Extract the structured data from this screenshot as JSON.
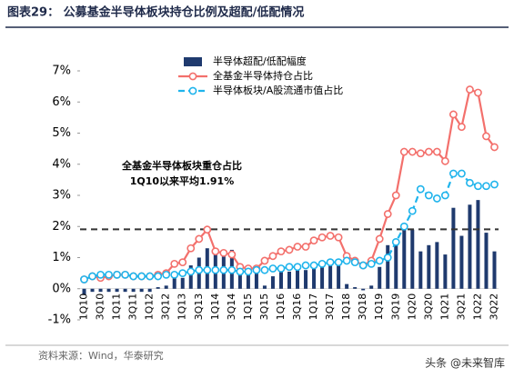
{
  "chart_data": {
    "type": "bar",
    "title": "图表29：  公募基金半导体板块持仓比例及超配/低配情况",
    "source": "资料来源：Wind，华泰研究",
    "watermark": "头条 @未来智库",
    "annotation": [
      "全基金半导体板块重仓占比",
      "1Q10以来平均1.91%"
    ],
    "average": 1.91,
    "categories": [
      "1Q10",
      null,
      "3Q10",
      null,
      "1Q11",
      null,
      "3Q11",
      null,
      "1Q12",
      null,
      "3Q12",
      null,
      "1Q13",
      null,
      "3Q13",
      null,
      "1Q14",
      null,
      "3Q14",
      null,
      "1Q15",
      null,
      "3Q15",
      null,
      "1Q16",
      null,
      "3Q16",
      null,
      "1Q17",
      null,
      "3Q17",
      null,
      "1Q18",
      null,
      "3Q18",
      null,
      "1Q19",
      null,
      "3Q19",
      null,
      "1Q20",
      null,
      "3Q20",
      null,
      "1Q21",
      null,
      "3Q21",
      null,
      "1Q22",
      null,
      "3Q22"
    ],
    "series": [
      {
        "name": "半导体超配/低配幅度",
        "type": "bar",
        "color": "#1f3a6e",
        "values": [
          -0.2,
          -0.1,
          -0.1,
          -0.1,
          -0.1,
          -0.1,
          -0.1,
          -0.1,
          -0.1,
          0.05,
          0.1,
          0.35,
          0.35,
          0.75,
          1.0,
          1.3,
          1.1,
          1.15,
          1.25,
          0.6,
          0.55,
          0.5,
          0.1,
          0.4,
          0.55,
          0.55,
          0.65,
          0.6,
          0.8,
          0.85,
          0.85,
          0.8,
          0.15,
          0.05,
          -0.05,
          0.1,
          0.7,
          1.4,
          1.5,
          2.1,
          1.9,
          1.2,
          1.4,
          1.5,
          1.1,
          2.6,
          1.7,
          2.7,
          2.85,
          1.8,
          1.2
        ]
      },
      {
        "name": "全基金半导体持仓占比",
        "type": "line",
        "color": "#f3706c",
        "values": [
          0.3,
          0.4,
          0.35,
          0.4,
          0.45,
          0.45,
          0.4,
          0.4,
          0.4,
          0.45,
          0.5,
          0.8,
          0.85,
          1.3,
          1.6,
          1.9,
          1.2,
          1.15,
          1.1,
          0.7,
          0.65,
          0.65,
          0.9,
          1.05,
          1.2,
          1.25,
          1.35,
          1.35,
          1.55,
          1.65,
          1.7,
          1.65,
          1.05,
          0.9,
          0.75,
          0.9,
          1.6,
          2.4,
          3.0,
          4.4,
          4.4,
          4.35,
          4.4,
          4.4,
          4.1,
          5.6,
          5.2,
          6.4,
          6.3,
          4.9,
          4.55
        ]
      },
      {
        "name": "半导体板块/A股流通市值占比",
        "type": "line",
        "style": "dashed",
        "color": "#1fb4ec",
        "values": [
          0.3,
          0.4,
          0.45,
          0.45,
          0.45,
          0.45,
          0.4,
          0.4,
          0.4,
          0.4,
          0.45,
          0.45,
          0.5,
          0.55,
          0.6,
          0.6,
          0.6,
          0.6,
          0.6,
          0.55,
          0.55,
          0.6,
          0.6,
          0.65,
          0.65,
          0.7,
          0.7,
          0.75,
          0.75,
          0.8,
          0.85,
          0.85,
          0.9,
          0.85,
          0.75,
          0.8,
          0.9,
          1.0,
          1.5,
          2.0,
          2.5,
          3.2,
          3.0,
          2.9,
          3.0,
          3.7,
          3.7,
          3.4,
          3.3,
          3.3,
          3.35
        ]
      }
    ],
    "ylim": [
      -1,
      7
    ],
    "yticks": [
      {
        "value": -1,
        "label": "-1%"
      },
      {
        "value": 0,
        "label": "0%"
      },
      {
        "value": 1,
        "label": "1%"
      },
      {
        "value": 2,
        "label": "2%"
      },
      {
        "value": 3,
        "label": "3%"
      },
      {
        "value": 4,
        "label": "4%"
      },
      {
        "value": 5,
        "label": "5%"
      },
      {
        "value": 6,
        "label": "6%"
      },
      {
        "value": 7,
        "label": "7%"
      }
    ],
    "grid": false
  }
}
